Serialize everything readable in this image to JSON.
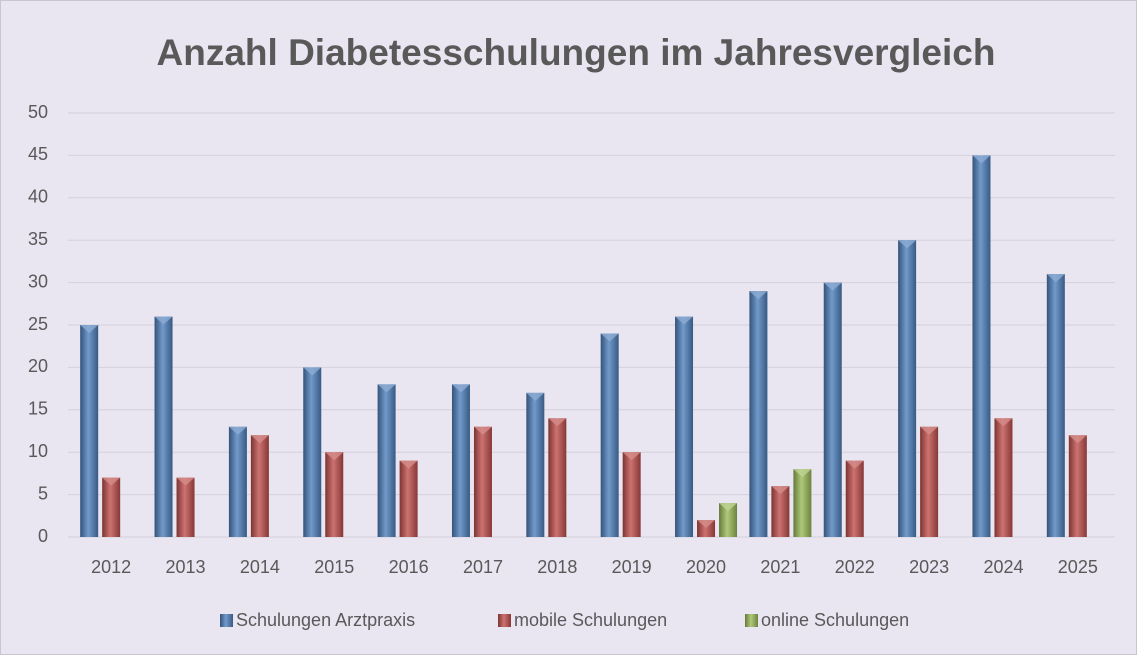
{
  "chart_data": {
    "type": "bar",
    "title": "Anzahl Diabetesschulungen im Jahresvergleich",
    "categories": [
      "2012",
      "2013",
      "2014",
      "2015",
      "2016",
      "2017",
      "2018",
      "2019",
      "2020",
      "2021",
      "2022",
      "2023",
      "2024",
      "2025"
    ],
    "series": [
      {
        "name": "Schulungen Arztpraxis",
        "color": "#4f81bd",
        "values": [
          25,
          26,
          13,
          20,
          18,
          18,
          17,
          24,
          26,
          29,
          30,
          35,
          45,
          31
        ]
      },
      {
        "name": "mobile Schulungen",
        "color": "#c0504d",
        "values": [
          7,
          7,
          12,
          10,
          9,
          13,
          14,
          10,
          2,
          6,
          9,
          13,
          14,
          12
        ]
      },
      {
        "name": "online Schulungen",
        "color": "#9bbb59",
        "values": [
          null,
          null,
          null,
          null,
          null,
          null,
          null,
          null,
          4,
          8,
          null,
          null,
          null,
          null
        ]
      }
    ],
    "ylim": [
      0,
      50
    ],
    "yticks": [
      0,
      5,
      10,
      15,
      20,
      25,
      30,
      35,
      40,
      45,
      50
    ],
    "grid": true,
    "legend": "bottom"
  }
}
